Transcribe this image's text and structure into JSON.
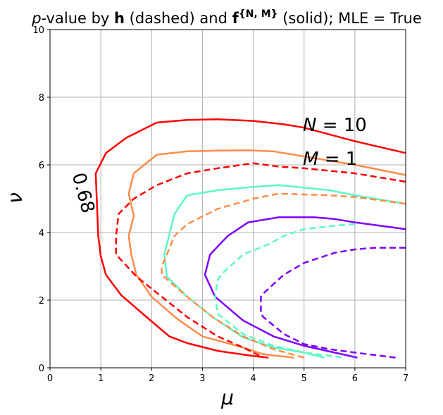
{
  "chart_data": {
    "type": "line",
    "title_parts": {
      "p": "p",
      "a": "-value by ",
      "h": "h",
      "b": " (dashed) and ",
      "f": "f",
      "sup": "{N, M}",
      "c": " (solid); MLE = True"
    },
    "xlabel": "μ",
    "ylabel": "ν",
    "xlim": [
      0,
      7
    ],
    "ylim": [
      0,
      10
    ],
    "xticks": [
      0,
      1,
      2,
      3,
      4,
      5,
      6,
      7
    ],
    "yticks": [
      0,
      2,
      4,
      6,
      8,
      10
    ],
    "grid": true,
    "annotations": {
      "n_var": "N",
      "n_rest": " = 10",
      "m_var": "M",
      "m_rest": " = 1",
      "contour_label": "0.68"
    },
    "colors": {
      "red": "#ff0000",
      "orange": "#ff8c4a",
      "aqua": "#5ef7c4",
      "purple": "#7f00ff"
    },
    "series": [
      {
        "style": "solid",
        "color": "#ff0000",
        "x": [
          7.0,
          6.0,
          5.0,
          4.6,
          4.0,
          3.3,
          2.7,
          2.1,
          1.5,
          1.1,
          0.9,
          0.95,
          1.0,
          1.1,
          1.4,
          1.9,
          2.35,
          2.7,
          3.3,
          4.0,
          4.3
        ],
        "y": [
          6.35,
          6.7,
          7.1,
          7.2,
          7.3,
          7.35,
          7.33,
          7.25,
          6.8,
          6.35,
          5.75,
          3.9,
          3.3,
          2.75,
          2.15,
          1.5,
          0.93,
          0.73,
          0.5,
          0.35,
          0.3
        ]
      },
      {
        "style": "solid",
        "color": "#ff8c4a",
        "x": [
          7.0,
          6.0,
          5.0,
          4.4,
          3.9,
          3.3,
          2.7,
          2.1,
          1.65,
          1.55,
          1.65,
          1.55,
          1.6,
          1.7,
          2.0,
          2.5,
          3.0,
          3.8,
          4.2,
          4.8
        ],
        "y": [
          5.7,
          6.0,
          6.25,
          6.4,
          6.43,
          6.42,
          6.4,
          6.3,
          5.75,
          5.15,
          4.5,
          3.9,
          3.35,
          2.75,
          2.1,
          1.45,
          0.93,
          0.6,
          0.4,
          0.3
        ]
      },
      {
        "style": "solid",
        "color": "#5ef7c4",
        "x": [
          7.0,
          6.0,
          5.5,
          4.5,
          4.0,
          3.3,
          2.7,
          2.45,
          2.25,
          2.3,
          2.7,
          3.2,
          3.8,
          4.4,
          5.0,
          5.4
        ],
        "y": [
          4.85,
          5.1,
          5.25,
          5.4,
          5.35,
          5.25,
          5.1,
          4.55,
          3.35,
          2.7,
          2.1,
          1.5,
          0.9,
          0.6,
          0.45,
          0.3
        ]
      },
      {
        "style": "solid",
        "color": "#7f00ff",
        "x": [
          7.0,
          6.5,
          6.0,
          5.6,
          5.2,
          4.5,
          3.9,
          3.5,
          3.15,
          3.05,
          3.25,
          3.8,
          4.4,
          5.0,
          5.6,
          6.05
        ],
        "y": [
          4.1,
          4.2,
          4.3,
          4.4,
          4.45,
          4.45,
          4.3,
          3.9,
          3.35,
          2.75,
          2.1,
          1.4,
          0.93,
          0.65,
          0.45,
          0.3
        ]
      },
      {
        "style": "dashed",
        "color": "#ff0000",
        "x": [
          7.0,
          6.0,
          5.0,
          4.5,
          4.0,
          3.3,
          2.7,
          2.1,
          1.65,
          1.35,
          1.3,
          1.3,
          1.7,
          2.2,
          2.7,
          3.3,
          3.8,
          4.2
        ],
        "y": [
          5.5,
          5.75,
          5.9,
          5.95,
          6.05,
          5.9,
          5.75,
          5.4,
          5.0,
          4.55,
          3.9,
          3.35,
          2.7,
          2.1,
          1.5,
          0.93,
          0.6,
          0.3
        ]
      },
      {
        "style": "dashed",
        "color": "#ff8c4a",
        "x": [
          7.0,
          6.0,
          5.5,
          4.5,
          4.0,
          3.3,
          2.7,
          2.45,
          2.3,
          2.2,
          2.2,
          2.7,
          3.2,
          3.8,
          4.4,
          5.0
        ],
        "y": [
          4.85,
          5.05,
          5.1,
          5.15,
          5.0,
          4.7,
          4.25,
          3.9,
          3.35,
          3.0,
          2.75,
          2.1,
          1.5,
          0.93,
          0.55,
          0.3
        ]
      },
      {
        "style": "dashed",
        "color": "#5ef7c4",
        "x": [
          6.0,
          5.6,
          5.0,
          4.6,
          4.3,
          3.8,
          3.4,
          3.3,
          3.25,
          3.3,
          3.8,
          4.4,
          5.0,
          5.8
        ],
        "y": [
          4.25,
          4.2,
          4.1,
          3.9,
          3.65,
          3.35,
          2.8,
          2.6,
          2.1,
          1.6,
          1.0,
          0.65,
          0.45,
          0.3
        ]
      },
      {
        "style": "dashed",
        "color": "#7f00ff",
        "x": [
          7.0,
          6.4,
          6.0,
          5.6,
          5.0,
          4.6,
          4.2,
          4.15,
          4.15,
          4.2,
          4.6,
          5.0,
          5.5,
          6.0,
          6.8
        ],
        "y": [
          3.55,
          3.55,
          3.5,
          3.4,
          3.1,
          2.75,
          2.2,
          2.1,
          1.6,
          1.5,
          1.0,
          0.7,
          0.55,
          0.45,
          0.3
        ]
      }
    ]
  }
}
